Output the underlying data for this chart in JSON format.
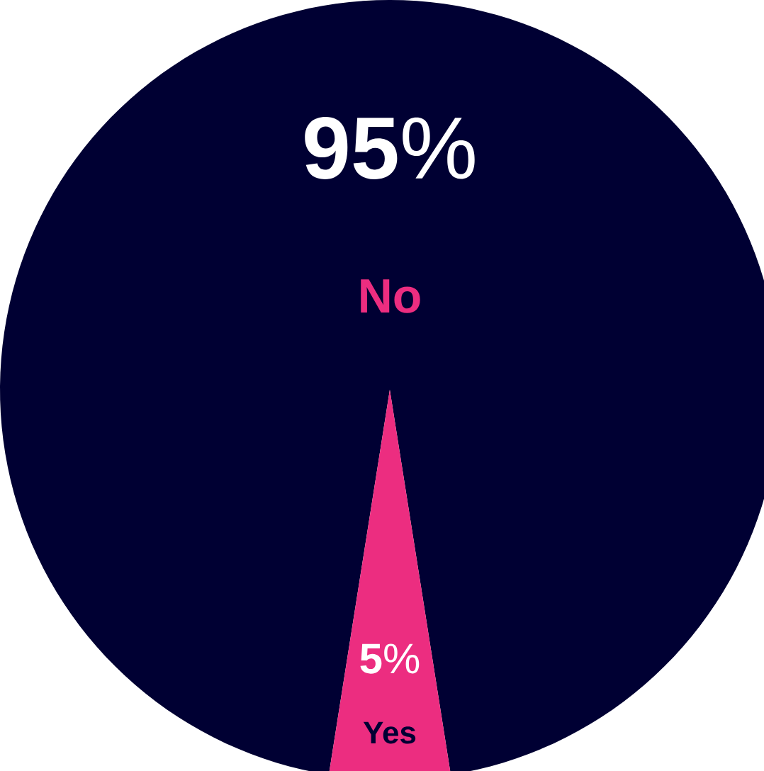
{
  "chart_data": {
    "type": "pie",
    "categories": [
      "No",
      "Yes"
    ],
    "values": [
      95,
      5
    ],
    "colors": [
      "#000033",
      "#ec2d80"
    ],
    "value_labels": [
      "**95**%",
      "**5**%"
    ]
  }
}
